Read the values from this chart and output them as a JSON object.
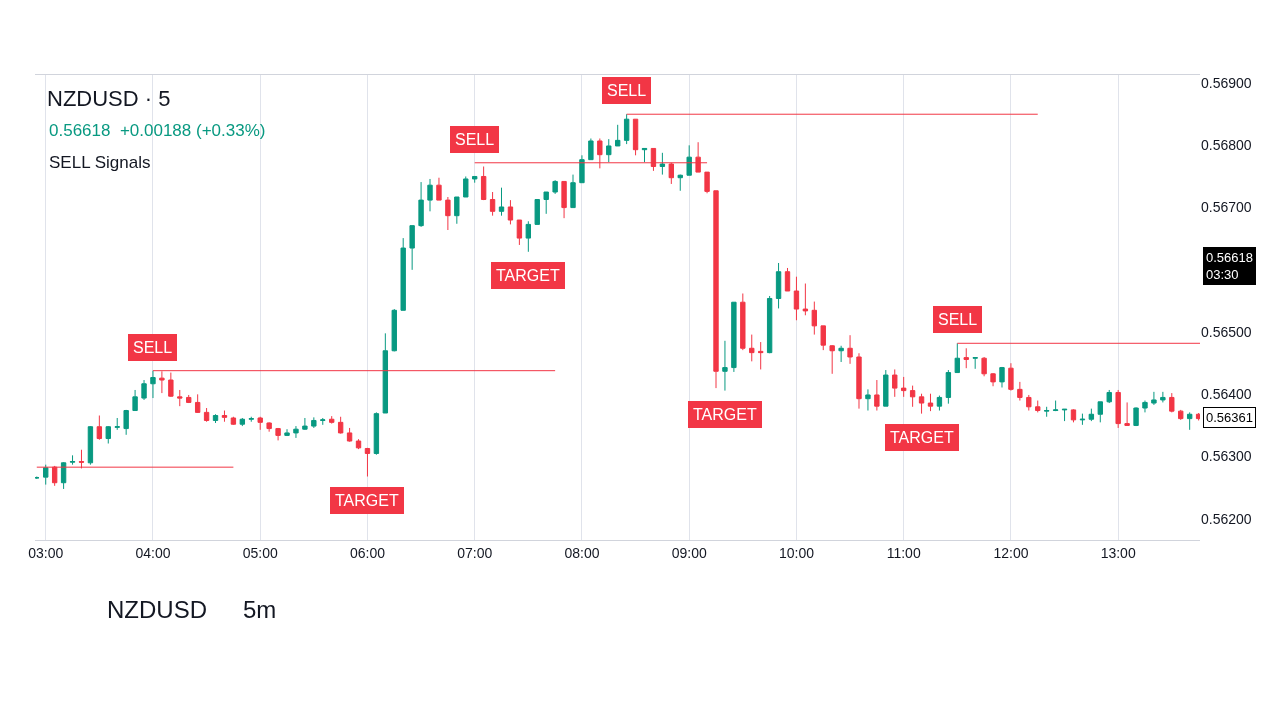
{
  "chart_data": {
    "type": "candlestick",
    "title": "NZDUSD · 5",
    "subtitle": "0.56618  +0.00188 (+0.33%)",
    "colors": [
      "#089981",
      "#089981",
      "#f23645",
      "#089981",
      "#089981",
      "#f23645",
      "#089981",
      "#f23645",
      "#089981",
      "#089981",
      "#089981",
      "#089981",
      "#089981",
      "#089981",
      "#f23645",
      "#f23645",
      "#f23645",
      "#f23645",
      "#f23645",
      "#f23645",
      "#089981",
      "#f23645",
      "#f23645",
      "#089981",
      "#089981",
      "#f23645",
      "#f23645",
      "#f23645",
      "#089981",
      "#089981",
      "#089981",
      "#089981",
      "#089981",
      "#f23645",
      "#f23645",
      "#f23645",
      "#f23645",
      "#f23645",
      "#089981",
      "#089981",
      "#089981",
      "#089981",
      "#089981",
      "#089981",
      "#089981",
      "#f23645",
      "#f23645",
      "#089981",
      "#089981",
      "#089981",
      "#f23645",
      "#f23645",
      "#089981",
      "#f23645",
      "#f23645",
      "#089981",
      "#089981",
      "#089981",
      "#089981",
      "#f23645",
      "#089981",
      "#089981",
      "#089981",
      "#f23645",
      "#089981",
      "#089981",
      "#089981",
      "#f23645",
      "#089981",
      "#f23645",
      "#089981",
      "#f23645",
      "#089981",
      "#089981",
      "#f23645",
      "#f23645",
      "#f23645",
      "#089981",
      "#089981",
      "#f23645",
      "#f23645",
      "#f23645",
      "#089981",
      "#089981",
      "#f23645",
      "#f23645",
      "#f23645",
      "#f23645",
      "#f23645",
      "#f23645",
      "#089981",
      "#f23645",
      "#f23645",
      "#089981",
      "#f23645",
      "#089981",
      "#f23645",
      "#f23645",
      "#f23645",
      "#f23645",
      "#f23645",
      "#089981",
      "#089981",
      "#089981",
      "#f23645",
      "#089981",
      "#f23645",
      "#f23645",
      "#089981",
      "#f23645",
      "#f23645",
      "#f23645",
      "#f23645",
      "#089981",
      "#089981",
      "#089981",
      "#f23645",
      "#089981",
      "#089981",
      "#089981",
      "#089981",
      "#f23645",
      "#f23645",
      "#089981",
      "#089981",
      "#089981",
      "#089981",
      "#f23645",
      "#f23645",
      "#089981",
      "#f23645"
    ],
    "x": [
      2.9167,
      3,
      3.0833,
      3.1667,
      3.25,
      3.3333,
      3.4167,
      3.5,
      3.5833,
      3.6667,
      3.75,
      3.8333,
      3.9167,
      4,
      4.0833,
      4.1667,
      4.25,
      4.3333,
      4.4167,
      4.5,
      4.5833,
      4.6667,
      4.75,
      4.8333,
      4.9167,
      5,
      5.0833,
      5.1667,
      5.25,
      5.3333,
      5.4167,
      5.5,
      5.5833,
      5.6667,
      5.75,
      5.8333,
      5.9167,
      6,
      6.0833,
      6.1667,
      6.25,
      6.3333,
      6.4167,
      6.5,
      6.5833,
      6.6667,
      6.75,
      6.8333,
      6.9167,
      7,
      7.0833,
      7.1667,
      7.25,
      7.3333,
      7.4167,
      7.5,
      7.5833,
      7.6667,
      7.75,
      7.8333,
      7.9167,
      8,
      8.0833,
      8.1667,
      8.25,
      8.3333,
      8.4167,
      8.5,
      8.5833,
      8.6667,
      8.75,
      8.8333,
      8.9167,
      9,
      9.0833,
      9.1667,
      9.25,
      9.3333,
      9.4167,
      9.5,
      9.5833,
      9.6667,
      9.75,
      9.8333,
      9.9167,
      10,
      10.0833,
      10.1667,
      10.25,
      10.3333,
      10.4167,
      10.5,
      10.5833,
      10.6667,
      10.75,
      10.8333,
      10.9167,
      11,
      11.0833,
      11.1667,
      11.25,
      11.3333,
      11.4167,
      11.5,
      11.5833,
      11.6667,
      11.75,
      11.8333,
      11.9167,
      12,
      12.0833,
      12.1667,
      12.25,
      12.3333,
      12.4167,
      12.5,
      12.5833,
      12.6667,
      12.75,
      12.8333,
      12.9167,
      13,
      13.0833,
      13.1667,
      13.25,
      13.3333,
      13.4167,
      13.5,
      13.5833,
      13.6667,
      13.75
    ],
    "ohlc": [
      [
        0.56266,
        0.56268,
        0.56264,
        0.56266
      ],
      [
        0.56267,
        0.56287,
        0.56255,
        0.56282
      ],
      [
        0.56283,
        0.56285,
        0.56253,
        0.56258
      ],
      [
        0.56258,
        0.56291,
        0.56248,
        0.5629
      ],
      [
        0.56291,
        0.56302,
        0.56287,
        0.56292
      ],
      [
        0.56292,
        0.56311,
        0.56281,
        0.56291
      ],
      [
        0.5629,
        0.56349,
        0.56287,
        0.56348
      ],
      [
        0.56348,
        0.56366,
        0.56327,
        0.56329
      ],
      [
        0.56329,
        0.56349,
        0.56321,
        0.56348
      ],
      [
        0.56347,
        0.56362,
        0.56343,
        0.56348
      ],
      [
        0.56345,
        0.56375,
        0.56335,
        0.56374
      ],
      [
        0.56374,
        0.56407,
        0.56374,
        0.56396
      ],
      [
        0.56394,
        0.56423,
        0.56391,
        0.56417
      ],
      [
        0.56417,
        0.56438,
        0.56394,
        0.56427
      ],
      [
        0.56426,
        0.56437,
        0.56402,
        0.56423
      ],
      [
        0.56423,
        0.56435,
        0.56396,
        0.56397
      ],
      [
        0.56396,
        0.56407,
        0.56381,
        0.56394
      ],
      [
        0.56395,
        0.56399,
        0.56386,
        0.56387
      ],
      [
        0.56387,
        0.564,
        0.5637,
        0.56371
      ],
      [
        0.56371,
        0.56378,
        0.56356,
        0.56358
      ],
      [
        0.56358,
        0.56368,
        0.56354,
        0.56366
      ],
      [
        0.56366,
        0.56374,
        0.56356,
        0.56363
      ],
      [
        0.56362,
        0.56364,
        0.56351,
        0.56352
      ],
      [
        0.56352,
        0.56362,
        0.56349,
        0.5636
      ],
      [
        0.5636,
        0.56364,
        0.56356,
        0.56361
      ],
      [
        0.56362,
        0.56364,
        0.56343,
        0.56355
      ],
      [
        0.56354,
        0.56355,
        0.5634,
        0.56345
      ],
      [
        0.56345,
        0.56346,
        0.56326,
        0.56334
      ],
      [
        0.56334,
        0.56344,
        0.56333,
        0.56338
      ],
      [
        0.56338,
        0.56349,
        0.5633,
        0.56344
      ],
      [
        0.56344,
        0.56362,
        0.56343,
        0.56349
      ],
      [
        0.56349,
        0.56363,
        0.56346,
        0.56358
      ],
      [
        0.56358,
        0.56362,
        0.56351,
        0.56359
      ],
      [
        0.5636,
        0.56365,
        0.56353,
        0.56355
      ],
      [
        0.56355,
        0.56364,
        0.56337,
        0.56338
      ],
      [
        0.56338,
        0.56346,
        0.56324,
        0.56325
      ],
      [
        0.56325,
        0.56328,
        0.56312,
        0.56314
      ],
      [
        0.56313,
        0.56314,
        0.56268,
        0.56305
      ],
      [
        0.56305,
        0.56371,
        0.56303,
        0.56369
      ],
      [
        0.5637,
        0.56498,
        0.5637,
        0.5647
      ],
      [
        0.5647,
        0.56537,
        0.56469,
        0.56535
      ],
      [
        0.56535,
        0.56651,
        0.56535,
        0.56635
      ],
      [
        0.56635,
        0.56671,
        0.566,
        0.56671
      ],
      [
        0.56671,
        0.56741,
        0.56669,
        0.56712
      ],
      [
        0.56712,
        0.56746,
        0.56694,
        0.56736
      ],
      [
        0.56736,
        0.56748,
        0.56712,
        0.56712
      ],
      [
        0.56712,
        0.56717,
        0.56664,
        0.56687
      ],
      [
        0.56687,
        0.56717,
        0.56674,
        0.56717
      ],
      [
        0.56717,
        0.5675,
        0.56717,
        0.56746
      ],
      [
        0.56746,
        0.5675,
        0.5674,
        0.5675
      ],
      [
        0.5675,
        0.56766,
        0.56712,
        0.56713
      ],
      [
        0.56713,
        0.56725,
        0.56687,
        0.56694
      ],
      [
        0.56694,
        0.56732,
        0.56687,
        0.56701
      ],
      [
        0.56701,
        0.56712,
        0.56673,
        0.5668
      ],
      [
        0.5668,
        0.5668,
        0.5664,
        0.56651
      ],
      [
        0.56651,
        0.56678,
        0.56629,
        0.56673
      ],
      [
        0.56673,
        0.56713,
        0.56673,
        0.56713
      ],
      [
        0.56713,
        0.56725,
        0.5669,
        0.56725
      ],
      [
        0.56725,
        0.56744,
        0.56722,
        0.56742
      ],
      [
        0.56742,
        0.56742,
        0.56683,
        0.567
      ],
      [
        0.567,
        0.56753,
        0.567,
        0.5674
      ],
      [
        0.5674,
        0.56784,
        0.5674,
        0.56777
      ],
      [
        0.56777,
        0.56811,
        0.56777,
        0.56807
      ],
      [
        0.56807,
        0.56811,
        0.56763,
        0.56785
      ],
      [
        0.56785,
        0.5681,
        0.56773,
        0.56799
      ],
      [
        0.56799,
        0.56833,
        0.56799,
        0.56808
      ],
      [
        0.56808,
        0.5685,
        0.56802,
        0.56842
      ],
      [
        0.56842,
        0.56842,
        0.56784,
        0.56793
      ],
      [
        0.56793,
        0.56795,
        0.56773,
        0.56795
      ],
      [
        0.56795,
        0.56795,
        0.56759,
        0.56766
      ],
      [
        0.56766,
        0.56788,
        0.56753,
        0.5677
      ],
      [
        0.5677,
        0.56772,
        0.56738,
        0.56748
      ],
      [
        0.56748,
        0.56753,
        0.56727,
        0.56752
      ],
      [
        0.56752,
        0.568,
        0.56752,
        0.56781
      ],
      [
        0.56781,
        0.56805,
        0.56757,
        0.56757
      ],
      [
        0.56757,
        0.56757,
        0.56723,
        0.56726
      ],
      [
        0.56727,
        0.56727,
        0.5641,
        0.56437
      ],
      [
        0.56437,
        0.56486,
        0.56406,
        0.56443
      ],
      [
        0.56443,
        0.56548,
        0.56436,
        0.56548
      ],
      [
        0.56548,
        0.56562,
        0.56471,
        0.56474
      ],
      [
        0.56474,
        0.56496,
        0.56453,
        0.56467
      ],
      [
        0.56469,
        0.56484,
        0.5644,
        0.56467
      ],
      [
        0.56467,
        0.56558,
        0.56466,
        0.56554
      ],
      [
        0.56554,
        0.56611,
        0.56538,
        0.56597
      ],
      [
        0.56597,
        0.56603,
        0.56566,
        0.56566
      ],
      [
        0.56566,
        0.56589,
        0.56519,
        0.56537
      ],
      [
        0.56537,
        0.56578,
        0.56527,
        0.56534
      ],
      [
        0.56535,
        0.56549,
        0.56496,
        0.5651
      ],
      [
        0.5651,
        0.5651,
        0.56471,
        0.56479
      ],
      [
        0.56478,
        0.56479,
        0.56433,
        0.5647
      ],
      [
        0.5647,
        0.56478,
        0.56452,
        0.56474
      ],
      [
        0.56474,
        0.56495,
        0.56449,
        0.5646
      ],
      [
        0.5646,
        0.56466,
        0.56377,
        0.56393
      ],
      [
        0.56393,
        0.56408,
        0.56374,
        0.56399
      ],
      [
        0.56399,
        0.56423,
        0.56374,
        0.56381
      ],
      [
        0.56381,
        0.56439,
        0.56381,
        0.56431
      ],
      [
        0.56431,
        0.5644,
        0.56396,
        0.5641
      ],
      [
        0.5641,
        0.56428,
        0.56396,
        0.56406
      ],
      [
        0.56406,
        0.56414,
        0.5638,
        0.56396
      ],
      [
        0.56396,
        0.56401,
        0.56369,
        0.56386
      ],
      [
        0.56386,
        0.56401,
        0.56373,
        0.56381
      ],
      [
        0.56381,
        0.56398,
        0.56374,
        0.56395
      ],
      [
        0.56395,
        0.56439,
        0.56385,
        0.56435
      ],
      [
        0.56435,
        0.56482,
        0.56435,
        0.56458
      ],
      [
        0.56459,
        0.56474,
        0.56442,
        0.56456
      ],
      [
        0.56458,
        0.56459,
        0.56441,
        0.56459
      ],
      [
        0.56458,
        0.5646,
        0.56429,
        0.56433
      ],
      [
        0.56433,
        0.56434,
        0.56413,
        0.5642
      ],
      [
        0.5642,
        0.56444,
        0.56411,
        0.56443
      ],
      [
        0.56442,
        0.5645,
        0.56406,
        0.56408
      ],
      [
        0.56408,
        0.5642,
        0.5639,
        0.56395
      ],
      [
        0.56395,
        0.56399,
        0.56374,
        0.5638
      ],
      [
        0.5638,
        0.5639,
        0.56371,
        0.56374
      ],
      [
        0.56373,
        0.5638,
        0.56364,
        0.56374
      ],
      [
        0.56374,
        0.5639,
        0.56373,
        0.56375
      ],
      [
        0.56375,
        0.56376,
        0.56357,
        0.56376
      ],
      [
        0.56375,
        0.56376,
        0.56355,
        0.56359
      ],
      [
        0.56359,
        0.56369,
        0.56351,
        0.5636
      ],
      [
        0.5636,
        0.56377,
        0.56357,
        0.56368
      ],
      [
        0.56368,
        0.56388,
        0.56355,
        0.56388
      ],
      [
        0.56388,
        0.56407,
        0.56386,
        0.56403
      ],
      [
        0.56403,
        0.56407,
        0.56346,
        0.56353
      ],
      [
        0.56353,
        0.56387,
        0.5635,
        0.5635
      ],
      [
        0.5635,
        0.56379,
        0.56349,
        0.56378
      ],
      [
        0.56378,
        0.5639,
        0.56371,
        0.56387
      ],
      [
        0.56386,
        0.56404,
        0.56383,
        0.56391
      ],
      [
        0.56391,
        0.56404,
        0.56387,
        0.56395
      ],
      [
        0.56395,
        0.56402,
        0.56371,
        0.56373
      ],
      [
        0.56373,
        0.56375,
        0.56359,
        0.56361
      ],
      [
        0.56361,
        0.56371,
        0.56343,
        0.56368
      ],
      [
        0.56368,
        0.5637,
        0.56358,
        0.56361
      ]
    ],
    "series": [
      {
        "type": "line",
        "color": "#f23645",
        "x": [
          2.9167,
          4.75
        ],
        "values": [
          0.56283,
          0.56283
        ]
      },
      {
        "type": "line",
        "color": "#f23645",
        "x": [
          4,
          7.75
        ],
        "values": [
          0.56438,
          0.56438
        ]
      },
      {
        "type": "line",
        "color": "#f23645",
        "x": [
          7,
          9.1667
        ],
        "values": [
          0.56772,
          0.56772
        ]
      },
      {
        "type": "line",
        "color": "#f23645",
        "x": [
          8.4167,
          12.25
        ],
        "values": [
          0.5685,
          0.5685
        ]
      },
      {
        "type": "line",
        "color": "#f23645",
        "x": [
          11.5,
          13.763
        ],
        "values": [
          0.56482,
          0.56482
        ]
      }
    ],
    "annotations": [
      "SELL Signals",
      "NZDUSD",
      "5m",
      "0.56618\n03:30",
      "0.56361",
      {
        "text": "SELL",
        "x": 4,
        "y": 0.56438
      },
      {
        "text": "TARGET",
        "x": 6,
        "y": 0.56268
      },
      {
        "text": "SELL",
        "x": 7,
        "y": 0.56772
      },
      {
        "text": "TARGET",
        "x": 7.5,
        "y": 0.56629
      },
      {
        "text": "SELL",
        "x": 8.4167,
        "y": 0.5685
      },
      {
        "text": "TARGET",
        "x": 9.3333,
        "y": 0.56406
      },
      {
        "text": "TARGET",
        "x": 11.1667,
        "y": 0.56369
      },
      {
        "text": "SELL",
        "x": 11.5,
        "y": 0.56482
      }
    ],
    "xlim": [
      2.9,
      13.763
    ],
    "ylim": [
      0.56166,
      0.56913
    ],
    "xticks": [
      {
        "value": 3,
        "label": "03:00"
      },
      {
        "value": 4,
        "label": "04:00"
      },
      {
        "value": 5,
        "label": "05:00"
      },
      {
        "value": 6,
        "label": "06:00"
      },
      {
        "value": 7,
        "label": "07:00"
      },
      {
        "value": 8,
        "label": "08:00"
      },
      {
        "value": 9,
        "label": "09:00"
      },
      {
        "value": 10,
        "label": "10:00"
      },
      {
        "value": 11,
        "label": "11:00"
      },
      {
        "value": 12,
        "label": "12:00"
      },
      {
        "value": 13,
        "label": "13:00"
      }
    ],
    "yticks": [
      {
        "value": 0.562,
        "label": "0.56200"
      },
      {
        "value": 0.563,
        "label": "0.56300"
      },
      {
        "value": 0.564,
        "label": "0.56400"
      },
      {
        "value": 0.565,
        "label": "0.56500"
      },
      {
        "value": 0.567,
        "label": "0.56700"
      },
      {
        "value": 0.568,
        "label": "0.56800"
      },
      {
        "value": 0.569,
        "label": "0.56900"
      }
    ],
    "grid": "x"
  }
}
